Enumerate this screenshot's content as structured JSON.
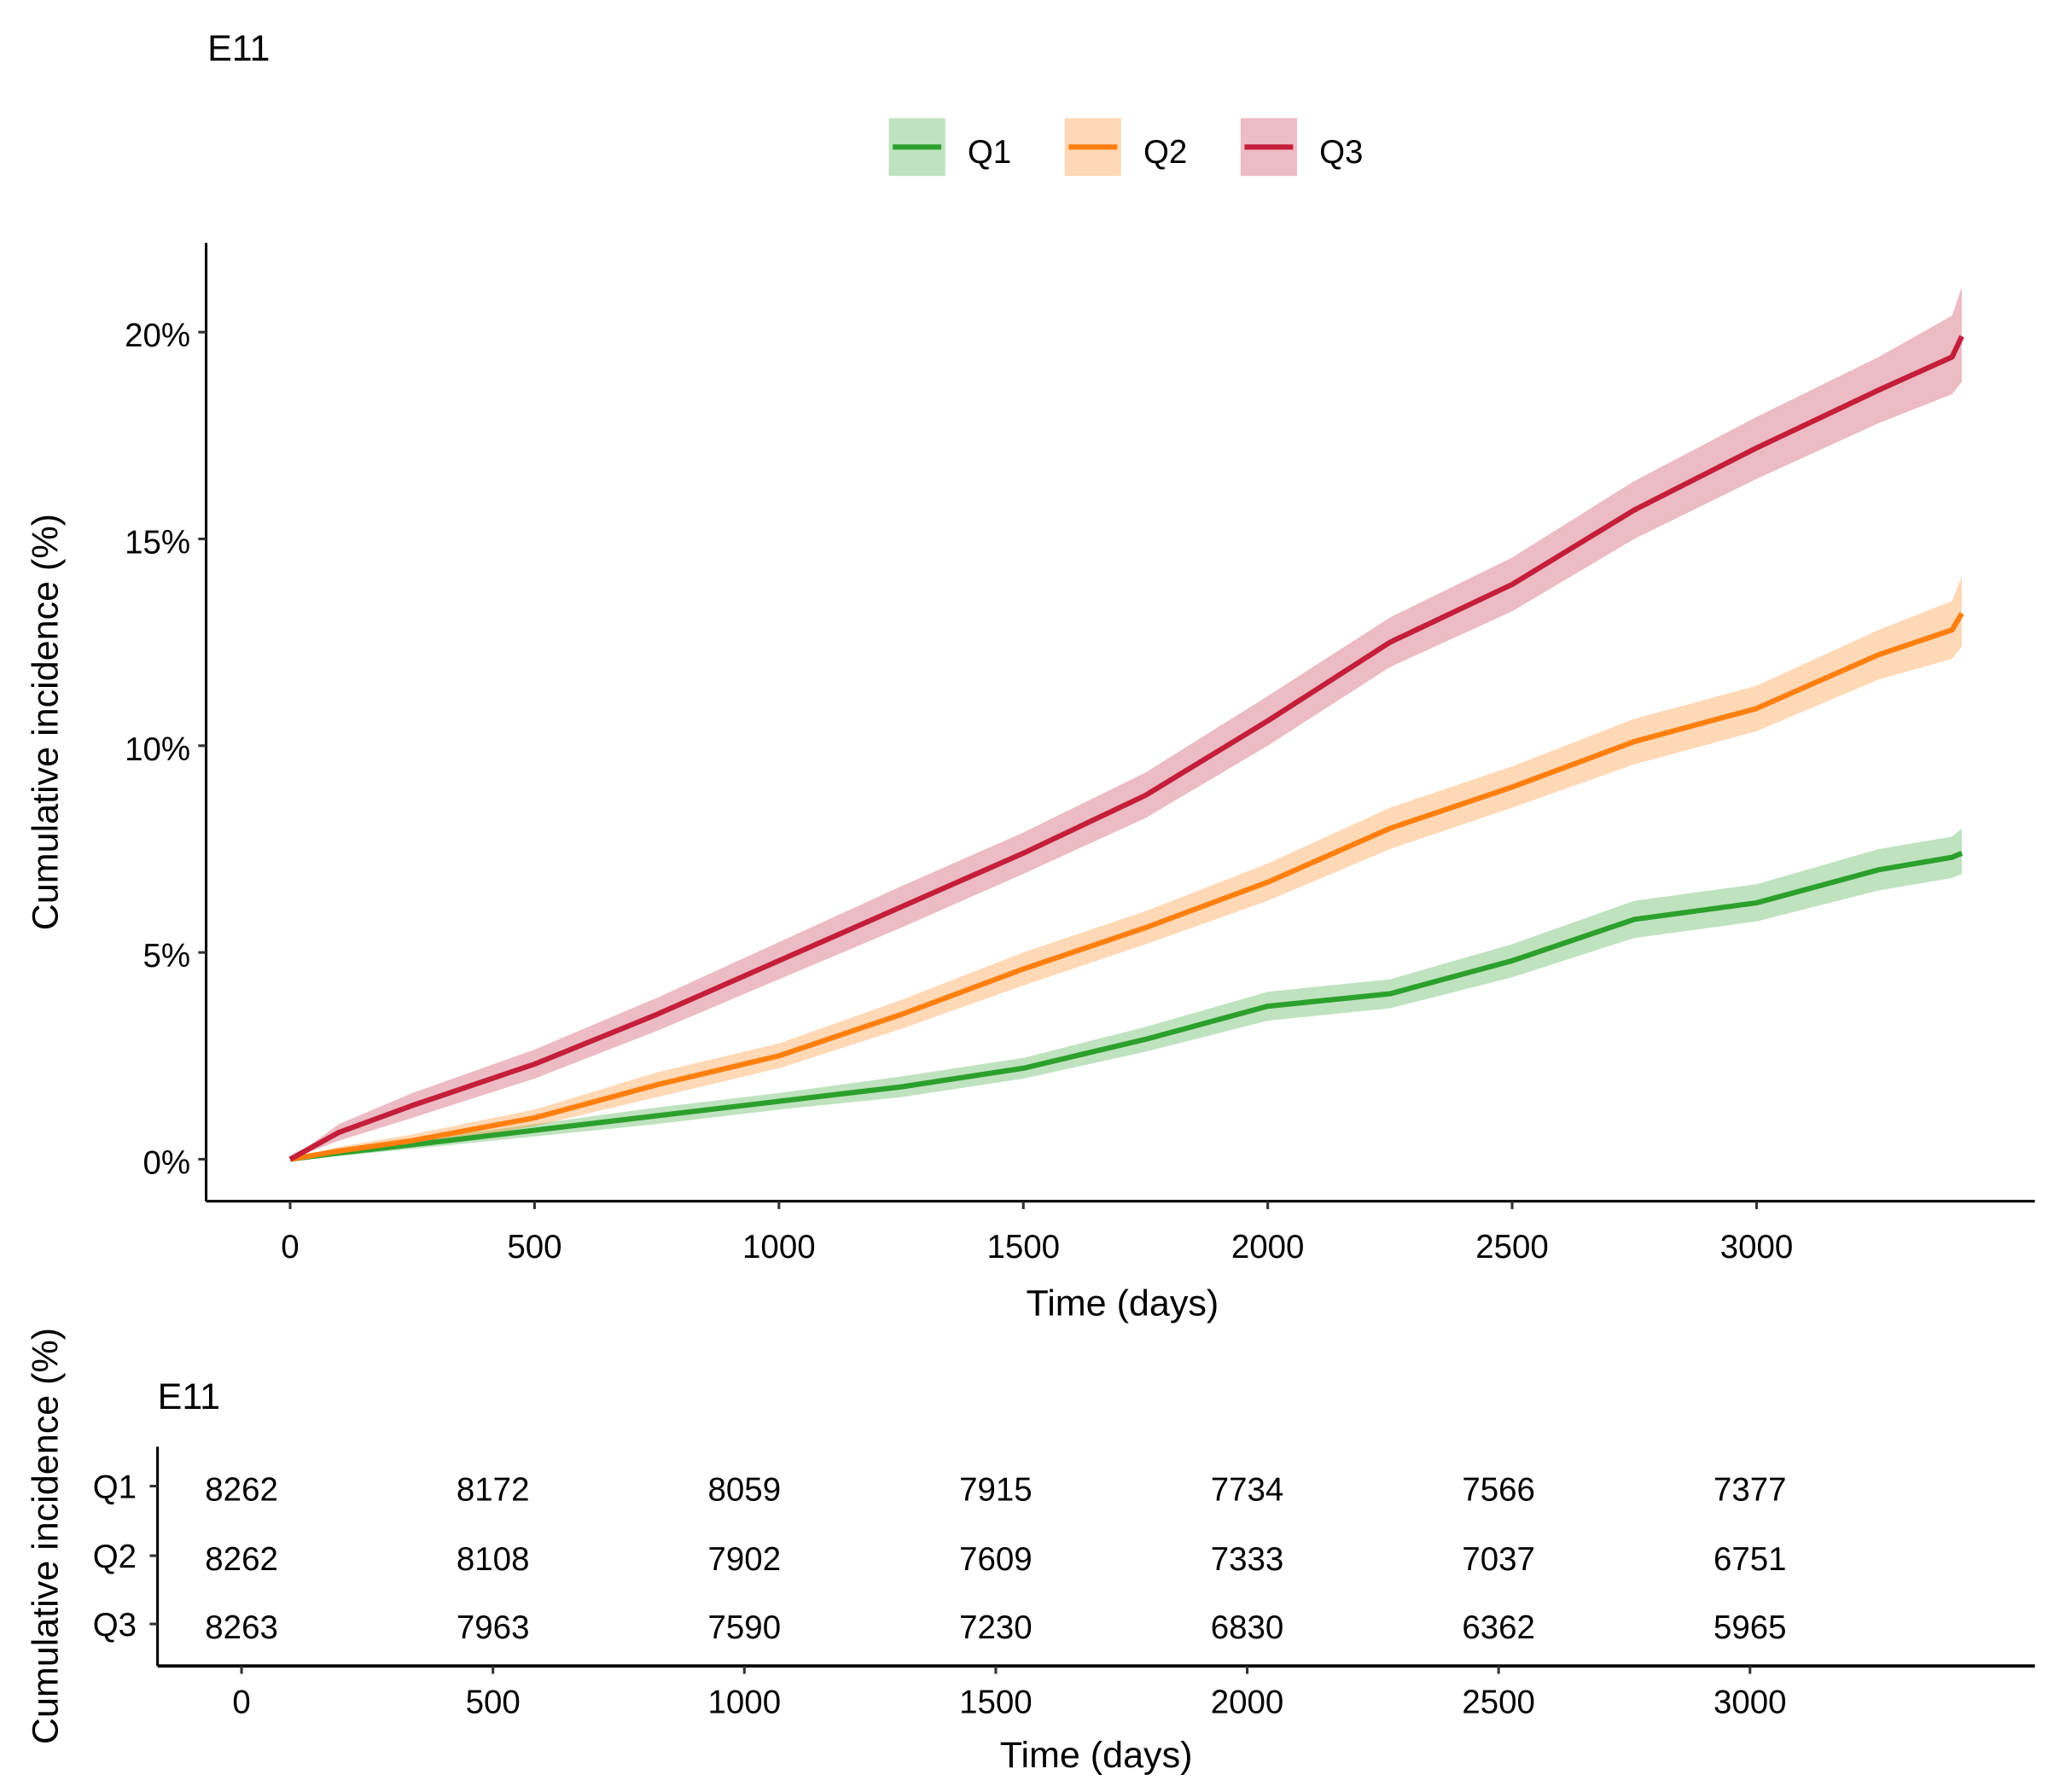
{
  "chart_data": [
    {
      "type": "line",
      "title": "E11",
      "xlabel": "Time (days)",
      "ylabel": "Cumulative incidence (%)",
      "xlim": [
        -170,
        3560
      ],
      "ylim": [
        -1,
        22
      ],
      "x_ticks": [
        0,
        500,
        1000,
        1500,
        2000,
        2500,
        3000
      ],
      "x_tick_labels": [
        "0",
        "500",
        "1000",
        "1500",
        "2000",
        "2500",
        "3000"
      ],
      "y_ticks": [
        0,
        5,
        10,
        15,
        20
      ],
      "y_tick_labels": [
        "0%",
        "5%",
        "10%",
        "15%",
        "20%"
      ],
      "legend_position": "top",
      "grid": false,
      "x": [
        0,
        100,
        250,
        500,
        750,
        1000,
        1250,
        1500,
        1750,
        2000,
        2250,
        2500,
        2750,
        3000,
        3250,
        3400,
        3420
      ],
      "series": [
        {
          "name": "Q1",
          "color": "#2ca02c",
          "values": [
            0,
            0.15,
            0.35,
            0.7,
            1.05,
            1.4,
            1.75,
            2.2,
            2.9,
            3.7,
            4.0,
            4.8,
            5.8,
            6.2,
            7.0,
            7.3,
            7.4
          ],
          "lower": [
            0,
            0.08,
            0.25,
            0.55,
            0.85,
            1.2,
            1.5,
            1.95,
            2.6,
            3.35,
            3.65,
            4.4,
            5.35,
            5.75,
            6.5,
            6.8,
            6.9
          ],
          "upper": [
            0,
            0.22,
            0.45,
            0.85,
            1.25,
            1.6,
            2.0,
            2.45,
            3.2,
            4.05,
            4.35,
            5.2,
            6.25,
            6.65,
            7.5,
            7.8,
            8.0
          ]
        },
        {
          "name": "Q2",
          "color": "#ff7f0e",
          "values": [
            0,
            0.2,
            0.45,
            1.0,
            1.8,
            2.5,
            3.5,
            4.6,
            5.6,
            6.7,
            8.0,
            9.0,
            10.1,
            10.9,
            12.2,
            12.8,
            13.2
          ],
          "lower": [
            0,
            0.1,
            0.3,
            0.8,
            1.5,
            2.2,
            3.15,
            4.2,
            5.2,
            6.25,
            7.5,
            8.5,
            9.55,
            10.35,
            11.6,
            12.1,
            12.4
          ],
          "upper": [
            0,
            0.3,
            0.6,
            1.2,
            2.1,
            2.8,
            3.85,
            5.0,
            6.0,
            7.15,
            8.5,
            9.5,
            10.65,
            11.45,
            12.8,
            13.5,
            14.1
          ]
        },
        {
          "name": "Q3",
          "color": "#c41e3a",
          "values": [
            0,
            0.65,
            1.3,
            2.3,
            3.5,
            4.8,
            6.1,
            7.4,
            8.8,
            10.6,
            12.5,
            13.9,
            15.7,
            17.2,
            18.6,
            19.4,
            19.9
          ],
          "lower": [
            0,
            0.45,
            1.0,
            1.95,
            3.1,
            4.35,
            5.6,
            6.9,
            8.25,
            10.0,
            11.9,
            13.25,
            15.0,
            16.45,
            17.8,
            18.5,
            18.8
          ],
          "upper": [
            0,
            0.85,
            1.6,
            2.65,
            3.9,
            5.25,
            6.6,
            7.9,
            9.35,
            11.2,
            13.1,
            14.55,
            16.4,
            17.95,
            19.4,
            20.4,
            21.1
          ]
        }
      ]
    },
    {
      "type": "table",
      "title": "E11",
      "xlabel": "Time (days)",
      "ylabel": "Cumulative incidence (%)",
      "x_tick_labels": [
        "0",
        "500",
        "1000",
        "1500",
        "2000",
        "2500",
        "3000"
      ],
      "x": [
        0,
        500,
        1000,
        1500,
        2000,
        2500,
        3000
      ],
      "rows": [
        {
          "name": "Q1",
          "color": "#2ca02c",
          "values": [
            "8262",
            "8172",
            "8059",
            "7915",
            "7734",
            "7566",
            "7377"
          ]
        },
        {
          "name": "Q2",
          "color": "#ff7f0e",
          "values": [
            "8262",
            "8108",
            "7902",
            "7609",
            "7333",
            "7037",
            "6751"
          ]
        },
        {
          "name": "Q3",
          "color": "#c41e3a",
          "values": [
            "8263",
            "7963",
            "7590",
            "7230",
            "6830",
            "6362",
            "5965"
          ]
        }
      ]
    }
  ]
}
